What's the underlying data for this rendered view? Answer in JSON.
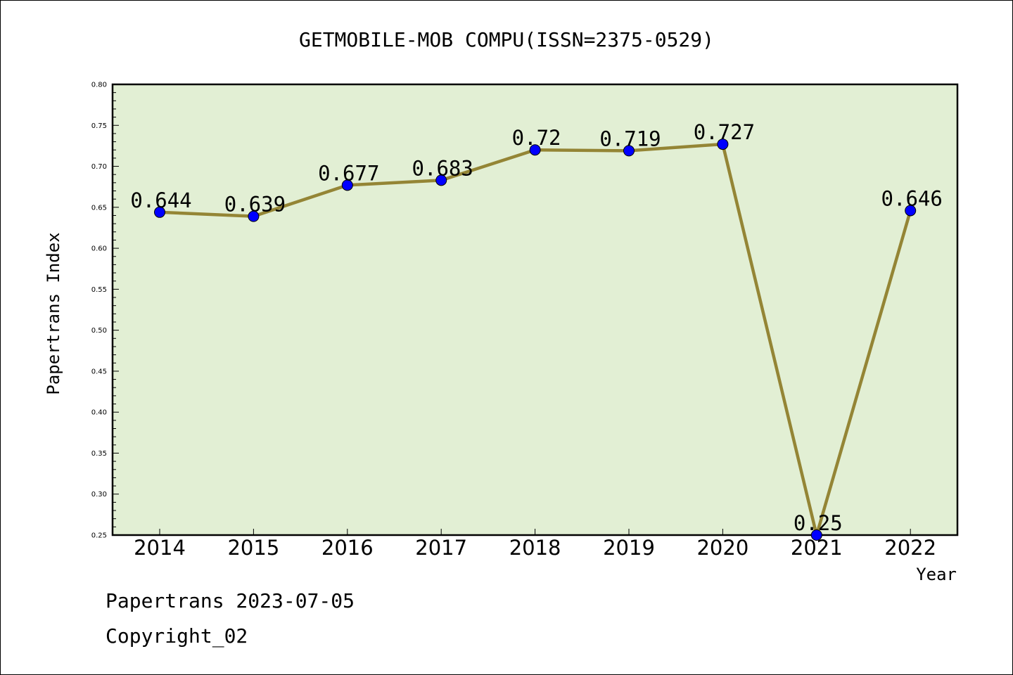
{
  "chart_data": {
    "type": "line",
    "title": "GETMOBILE-MOB COMPU(ISSN=2375-0529)",
    "xlabel": "Year",
    "ylabel": "Papertrans Index",
    "categories": [
      "2014",
      "2015",
      "2016",
      "2017",
      "2018",
      "2019",
      "2020",
      "2021",
      "2022"
    ],
    "series": [
      {
        "values": [
          0.644,
          0.639,
          0.677,
          0.683,
          0.72,
          0.719,
          0.727,
          0.25,
          0.646
        ],
        "labels": [
          "0.644",
          "0.639",
          "0.677",
          "0.683",
          "0.72",
          "0.719",
          "0.727",
          "0.25",
          "0.646"
        ]
      }
    ],
    "ylim": [
      0.25,
      0.8
    ],
    "yticks": [
      "0.25",
      "0.30",
      "0.35",
      "0.40",
      "0.45",
      "0.50",
      "0.55",
      "0.60",
      "0.65",
      "0.70",
      "0.75",
      "0.80"
    ],
    "grid": false,
    "colors": {
      "plot_background": "#e2efd4",
      "line": "#948535",
      "marker": "#0000ff"
    }
  },
  "footer": {
    "line1": "Papertrans 2023-07-05",
    "line2": "Copyright_02"
  }
}
